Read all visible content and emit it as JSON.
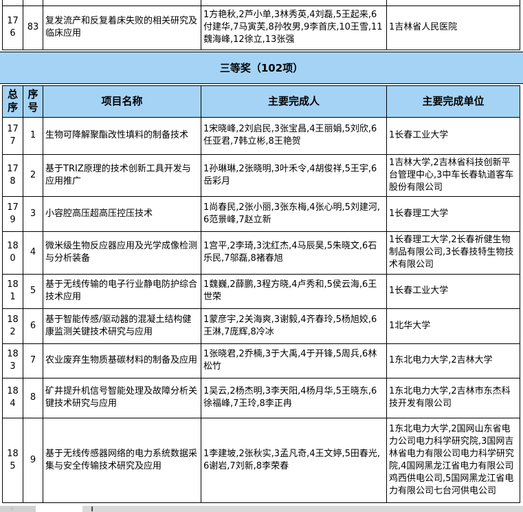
{
  "colors": {
    "header_fill": "#a4d3f5",
    "grid_border": "#000000",
    "scrollbar_track": "#d9d9d9"
  },
  "table": {
    "section_title": "三等奖（102项）",
    "columns": [
      "总序",
      "序号",
      "项目名称",
      "主要完成人",
      "主要完成单位"
    ],
    "rows_before_section": [
      {
        "total": "176",
        "seq": "83",
        "project": "复发流产和反复着床失败的相关研究及临床应用",
        "people": "1方艳秋,2芦小单,3林秀英,4刘磊,5王起来,6付建华,7马寅芙,8孙牧男,9李首庆,10王雪,11魏海峰,12徐立,13张强",
        "units": "1吉林省人民医院"
      }
    ],
    "rows": [
      {
        "total": "177",
        "seq": "1",
        "project": "生物可降解聚酯改性填料的制备技术",
        "people": "1宋晓峰,2刘启民,3张宝昌,4王丽娟,5刘欣,6任亚君,7韩立彬,8王艳贺",
        "units": "1长春工业大学"
      },
      {
        "total": "178",
        "seq": "2",
        "project": "基于TRIZ原理的技术创新工具开发与应用推广",
        "people": "1孙琳琳,2张晓明,3叶禾令,4胡俊祥,5王宇,6岳彩月",
        "units": "1吉林大学,2吉林省科技创新平台管理中心,3中车长春轨道客车股份有限公司"
      },
      {
        "total": "179",
        "seq": "3",
        "project": "小容腔高压超高压控压技术",
        "people": "1尚春民,2张小丽,3张东梅,4张心明,5刘建河,6范景峰,7赵立新",
        "units": "1长春理工大学"
      },
      {
        "total": "180",
        "seq": "4",
        "project": "微米级生物反应器应用及光学成像检测与分析装备",
        "people": "1宫平,2李琦,3沈红杰,4马辰昊,5朱晓文,6石乐民,7邬磊,8褚春旭",
        "units": "1长春理工大学,2长春祈健生物制品有限公司,3长春技特生物技术有限公司"
      },
      {
        "total": "181",
        "seq": "5",
        "project": "基于无线传输的电子行业静电防护综合技术应用",
        "people": "1魏巍,2薛鹏,3程方晓,4卢秀和,5侯云海,6王世荣",
        "units": "1长春工业大学"
      },
      {
        "total": "182",
        "seq": "6",
        "project": "基于智能传感/驱动器的混凝土结构健康监测关键技术研究与应用",
        "people": "1蒙彦宇,2关海爽,3谢毅,4齐春玲,5杨旭姣,6王淋,7庞辉,8冷冰",
        "units": "1北华大学"
      },
      {
        "total": "183",
        "seq": "7",
        "project": "农业废弃生物质基碳材料的制备及应用",
        "people": "1张晓君,2乔楠,3于大禹,4于开锋,5周兵,6林松竹",
        "units": "1东北电力大学,2吉林大学"
      },
      {
        "total": "184",
        "seq": "8",
        "project": "矿井提升机信号智能处理及故障分析关键技术研究与应用",
        "people": "1吴云,2杨杰明,3李天阳,4杨月华,5王晓东,6徐福峰,7王玲,8李正冉",
        "units": "1东北电力大学,2吉林市东杰科技开发有限公司"
      },
      {
        "total": "185",
        "seq": "9",
        "project": "基于无线传感器网络的电力系统数据采集与安全传输技术研究及应用",
        "people": "1李建坡,2张秋实,3孟凡奇,4王文婷,5田春光,6谢岩,7刘新,8李荣春",
        "units": "1东北电力大学,2国网山东省电力公司电力科学研究院,3国网吉林省电力有限公司电力科学研究院,4国网黑龙江省电力有限公司鸡西供电公司,5国网黑龙江省电力有限公司七台河供电公司"
      }
    ]
  }
}
